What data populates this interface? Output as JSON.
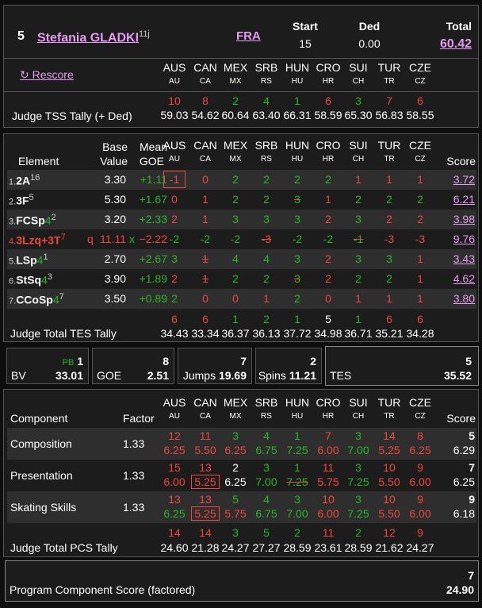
{
  "header": {
    "rank": "5",
    "skater": "Stefania GLADKI",
    "sup": "11j",
    "nation": "FRA",
    "start_label": "Start",
    "start": "15",
    "ded_label": "Ded",
    "ded": "0.00",
    "total_label": "Total",
    "total": "60.42",
    "rescore": "↻ Rescore"
  },
  "judges": [
    {
      "name": "AUS",
      "code": "AU"
    },
    {
      "name": "CAN",
      "code": "CA"
    },
    {
      "name": "MEX",
      "code": "MX"
    },
    {
      "name": "SRB",
      "code": "RS"
    },
    {
      "name": "HUN",
      "code": "HU"
    },
    {
      "name": "CRO",
      "code": "HR"
    },
    {
      "name": "SUI",
      "code": "CH"
    },
    {
      "name": "TUR",
      "code": "TR"
    },
    {
      "name": "CZE",
      "code": "CZ"
    }
  ],
  "tss_tally": {
    "label": "Judge TSS Tally (+ Ded)",
    "ranks": [
      "10",
      "8",
      "2",
      "4",
      "1",
      "6",
      "3",
      "7",
      "6"
    ],
    "rank_colors": [
      "rd",
      "rd",
      "g",
      "g",
      "g",
      "rd",
      "g",
      "rd",
      "rd"
    ],
    "values": [
      "59.03",
      "54.62",
      "60.64",
      "63.40",
      "66.31",
      "58.59",
      "65.30",
      "56.83",
      "58.55"
    ]
  },
  "elements_header": {
    "element": "Element",
    "base1": "Base",
    "base2": "Value",
    "mean1": "Mean",
    "mean2": "GOE",
    "score": "Score"
  },
  "elements": [
    {
      "num": "1.",
      "name": "2A",
      "sup": "16",
      "g": "",
      "base": "3.30",
      "goe": "+1.11",
      "score": "3.72",
      "red": false,
      "q": "",
      "x": "",
      "goes": [
        "-1",
        "0",
        "2",
        "2",
        "2",
        "2",
        "1",
        "1",
        "1"
      ],
      "mark": [
        1,
        0,
        0,
        0,
        0,
        0,
        0,
        0,
        0
      ],
      "slash": [
        0,
        0,
        0,
        0,
        0,
        0,
        0,
        0,
        0
      ]
    },
    {
      "num": "2.",
      "name": "3F",
      "sup": "5",
      "g": "",
      "base": "5.30",
      "goe": "+1.67",
      "score": "6.21",
      "red": false,
      "q": "",
      "x": "",
      "goes": [
        "0",
        "1",
        "2",
        "2",
        "3",
        "1",
        "2",
        "2",
        "2"
      ],
      "mark": [
        0,
        0,
        0,
        0,
        0,
        0,
        0,
        0,
        0
      ],
      "slash": [
        0,
        0,
        0,
        0,
        1,
        0,
        0,
        0,
        0
      ]
    },
    {
      "num": "3.",
      "name": "FCSp",
      "sup": "2",
      "g": "4",
      "base": "3.20",
      "goe": "+2.33",
      "score": "3.98",
      "red": false,
      "q": "",
      "x": "",
      "goes": [
        "2",
        "1",
        "3",
        "3",
        "3",
        "2",
        "3",
        "2",
        "2"
      ],
      "mark": [
        0,
        0,
        0,
        0,
        0,
        0,
        0,
        0,
        0
      ],
      "slash": [
        0,
        0,
        0,
        0,
        0,
        0,
        0,
        0,
        0
      ]
    },
    {
      "num": "4.",
      "name": "3Lzq+3T",
      "sup": "7",
      "g": "",
      "base": "11.11",
      "goe": "−2.22",
      "score": "9.76",
      "red": true,
      "q": "q",
      "x": "x",
      "goes": [
        "-2",
        "-2",
        "-2",
        "-3",
        "-2",
        "-2",
        "-1",
        "-3",
        "-3"
      ],
      "mark": [
        0,
        0,
        0,
        0,
        0,
        0,
        0,
        0,
        0
      ],
      "slash": [
        0,
        0,
        0,
        1,
        0,
        0,
        1,
        0,
        0
      ]
    },
    {
      "num": "5.",
      "name": "LSp",
      "sup": "1",
      "g": "4",
      "base": "2.70",
      "goe": "+2.67",
      "score": "3.43",
      "red": false,
      "q": "",
      "x": "",
      "goes": [
        "3",
        "1",
        "4",
        "4",
        "3",
        "2",
        "3",
        "3",
        "1"
      ],
      "mark": [
        0,
        0,
        0,
        0,
        0,
        0,
        0,
        0,
        0
      ],
      "slash": [
        0,
        1,
        0,
        0,
        0,
        0,
        0,
        0,
        0
      ]
    },
    {
      "num": "6.",
      "name": "StSq",
      "sup": "3",
      "g": "4",
      "base": "3.90",
      "goe": "+1.89",
      "score": "4.62",
      "red": false,
      "q": "",
      "x": "",
      "goes": [
        "2",
        "1",
        "2",
        "2",
        "3",
        "2",
        "2",
        "2",
        "1"
      ],
      "mark": [
        0,
        0,
        0,
        0,
        0,
        0,
        0,
        0,
        0
      ],
      "slash": [
        0,
        1,
        0,
        0,
        1,
        0,
        0,
        0,
        0
      ]
    },
    {
      "num": "7.",
      "name": "CCoSp",
      "sup": "7",
      "g": "4",
      "base": "3.50",
      "goe": "+0.89",
      "score": "3.80",
      "red": false,
      "q": "",
      "x": "",
      "goes": [
        "2",
        "0",
        "0",
        "1",
        "2",
        "0",
        "1",
        "1",
        "1"
      ],
      "mark": [
        0,
        0,
        0,
        0,
        0,
        0,
        0,
        0,
        0
      ],
      "slash": [
        0,
        0,
        0,
        0,
        0,
        0,
        0,
        0,
        0
      ]
    }
  ],
  "tes_tally": {
    "label": "Judge Total TES Tally",
    "ranks": [
      "6",
      "6",
      "1",
      "2",
      "1",
      "5",
      "1",
      "6",
      "6"
    ],
    "rank_colors": [
      "rd",
      "rd",
      "g",
      "g",
      "g",
      "w",
      "g",
      "rd",
      "rd"
    ],
    "values": [
      "34.43",
      "33.34",
      "36.37",
      "36.13",
      "37.72",
      "34.98",
      "36.71",
      "35.21",
      "34.28"
    ]
  },
  "summary": {
    "bv_label": "BV",
    "pb_label": "PB",
    "bv_rank": "1",
    "bv": "33.01",
    "goe_label": "GOE",
    "goe_rank": "8",
    "goe": "2.51",
    "jumps_label": "Jumps",
    "jumps_rank": "7",
    "jumps": "19.69",
    "spins_label": "Spins",
    "spins_rank": "2",
    "spins": "11.21",
    "tes_label": "TES",
    "tes_rank": "5",
    "tes": "35.52"
  },
  "components_header": {
    "component": "Component",
    "factor": "Factor",
    "score": "Score"
  },
  "components": [
    {
      "name": "Composition",
      "factor": "1.33",
      "rank": "5",
      "score": "6.29",
      "ranks": [
        "12",
        "11",
        "3",
        "4",
        "1",
        "7",
        "3",
        "14",
        "8"
      ],
      "rank_colors": [
        "rd",
        "rd",
        "g",
        "g",
        "g",
        "rd",
        "g",
        "rd",
        "rd"
      ],
      "vals": [
        "6.25",
        "5.50",
        "6.25",
        "6.75",
        "7.25",
        "6.00",
        "7.00",
        "5.25",
        "6.25"
      ],
      "val_colors": [
        "rd",
        "rd",
        "rd",
        "g",
        "g",
        "rd",
        "g",
        "rd",
        "rd"
      ],
      "mark": [
        0,
        0,
        0,
        0,
        0,
        0,
        0,
        0,
        0
      ],
      "slash": [
        0,
        0,
        0,
        0,
        0,
        0,
        0,
        0,
        0
      ]
    },
    {
      "name": "Presentation",
      "factor": "1.33",
      "rank": "7",
      "score": "6.25",
      "ranks": [
        "15",
        "13",
        "2",
        "3",
        "1",
        "11",
        "3",
        "10",
        "9"
      ],
      "rank_colors": [
        "rd",
        "rd",
        "w",
        "g",
        "g",
        "rd",
        "g",
        "rd",
        "rd"
      ],
      "vals": [
        "6.00",
        "5.25",
        "6.25",
        "7.00",
        "7.25",
        "5.75",
        "7.25",
        "5.50",
        "6.00"
      ],
      "val_colors": [
        "rd",
        "rd",
        "w",
        "g",
        "g",
        "rd",
        "g",
        "rd",
        "rd"
      ],
      "mark": [
        0,
        1,
        0,
        0,
        0,
        0,
        0,
        0,
        0
      ],
      "slash": [
        0,
        0,
        0,
        0,
        1,
        0,
        0,
        0,
        0
      ]
    },
    {
      "name": "Skating Skills",
      "factor": "1.33",
      "rank": "9",
      "score": "6.18",
      "ranks": [
        "13",
        "13",
        "5",
        "4",
        "3",
        "10",
        "3",
        "10",
        "9"
      ],
      "rank_colors": [
        "rd",
        "rd",
        "g",
        "g",
        "g",
        "rd",
        "g",
        "rd",
        "rd"
      ],
      "vals": [
        "6.25",
        "5.25",
        "5.75",
        "6.75",
        "7.00",
        "6.00",
        "7.25",
        "5.50",
        "6.00"
      ],
      "val_colors": [
        "g",
        "rd",
        "rd",
        "g",
        "g",
        "rd",
        "g",
        "rd",
        "rd"
      ],
      "mark": [
        0,
        1,
        0,
        0,
        0,
        0,
        0,
        0,
        0
      ],
      "slash": [
        0,
        0,
        0,
        0,
        0,
        0,
        0,
        0,
        0
      ]
    }
  ],
  "pcs_tally": {
    "label": "Judge Total PCS Tally",
    "ranks": [
      "14",
      "14",
      "3",
      "5",
      "2",
      "11",
      "2",
      "12",
      "9"
    ],
    "rank_colors": [
      "rd",
      "rd",
      "g",
      "g",
      "g",
      "rd",
      "g",
      "rd",
      "rd"
    ],
    "values": [
      "24.60",
      "21.28",
      "24.27",
      "27.27",
      "28.59",
      "23.61",
      "28.59",
      "21.62",
      "24.27"
    ]
  },
  "pcs_total": {
    "label": "Program Component Score (factored)",
    "rank": "7",
    "value": "24.90"
  }
}
